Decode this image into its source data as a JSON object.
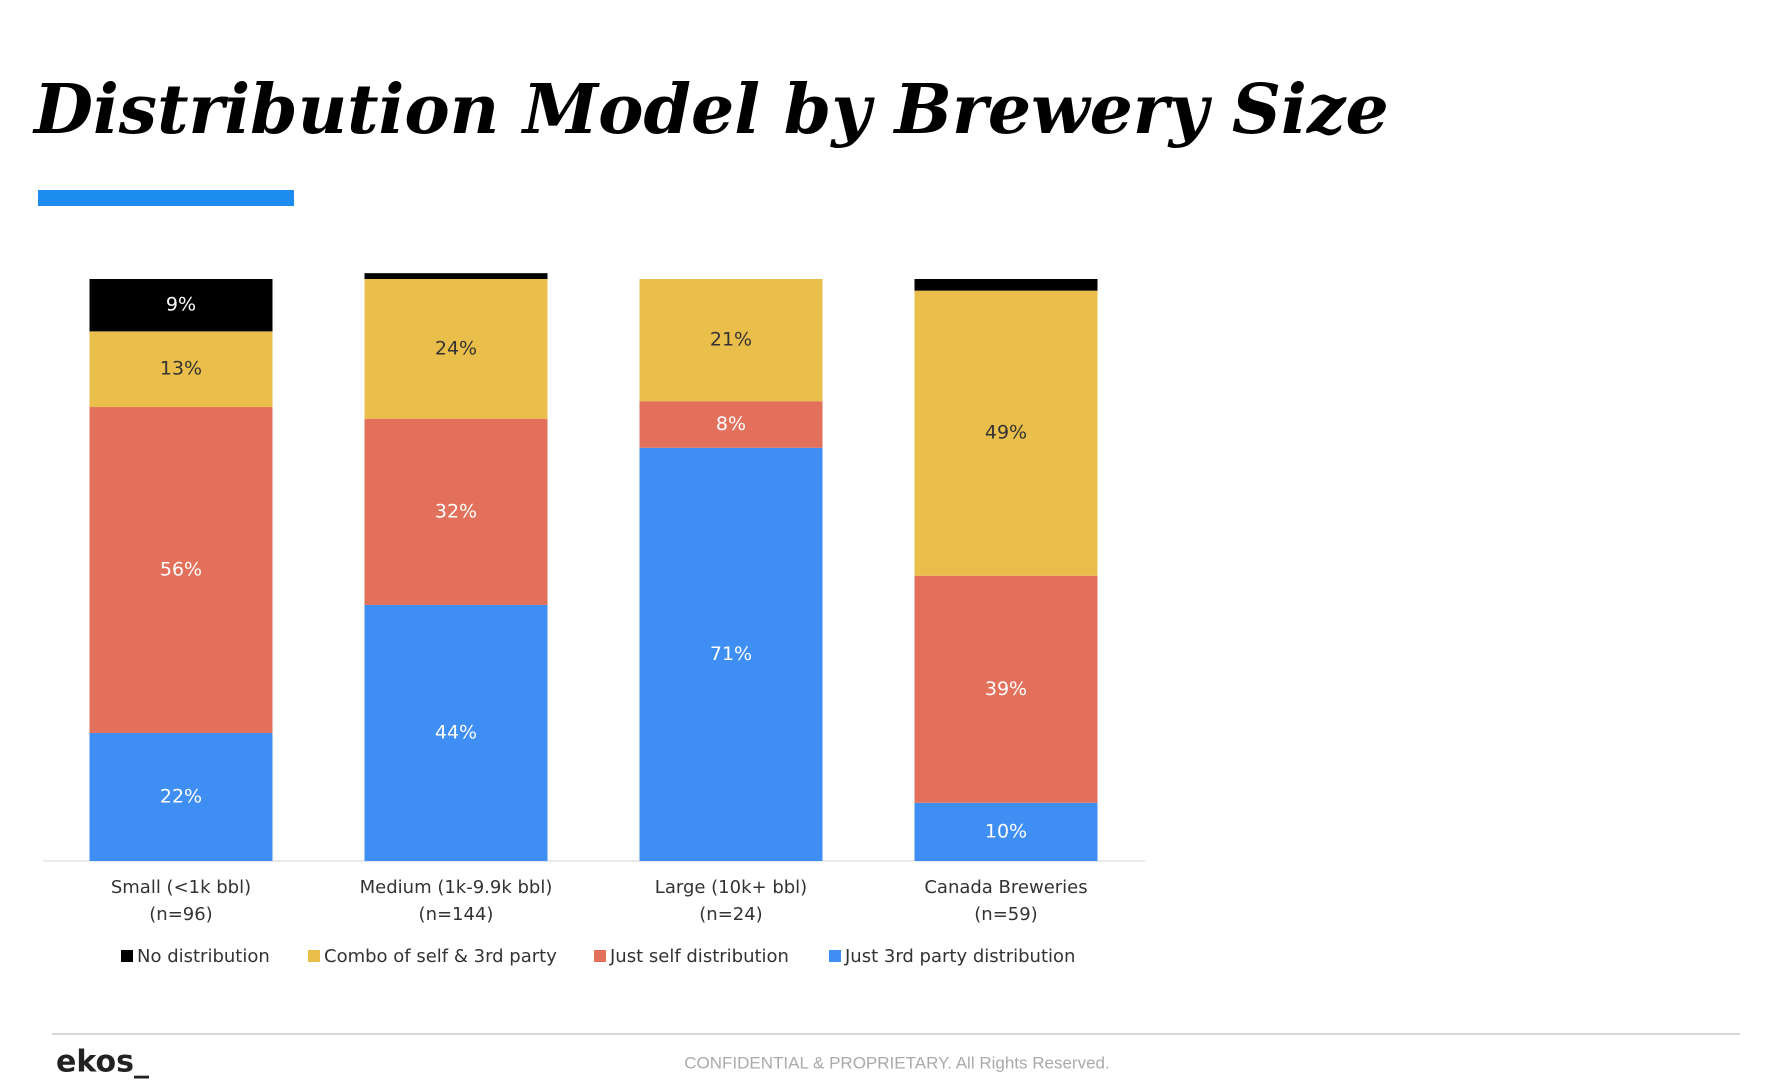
{
  "chart_data": {
    "type": "stacked_bar",
    "title": "Distribution Model by Brewery Size",
    "categories": [
      [
        "Small (<1k bbl)",
        "(n=96)"
      ],
      [
        "Medium (1k-9.9k bbl)",
        "(n=144)"
      ],
      [
        "Large (10k+ bbl)",
        "(n=24)"
      ],
      [
        "Canada Breweries",
        "(n=59)"
      ]
    ],
    "series": [
      {
        "name": "Just 3rd party distribution",
        "color": "#3e8ef4",
        "label_color": "#ffffff",
        "values": [
          22,
          44,
          71,
          10
        ],
        "value_labels": [
          "22%",
          "44%",
          "71%",
          "10%"
        ]
      },
      {
        "name": "Just self distribution",
        "color": "#e3705b",
        "label_color": "#ffffff",
        "values": [
          56,
          32,
          8,
          39
        ],
        "value_labels": [
          "56%",
          "32%",
          "8%",
          "39%"
        ]
      },
      {
        "name": "Combo of self & 3rd party",
        "color": "#eabe4a",
        "label_color": "#333333",
        "values": [
          13,
          24,
          21,
          49
        ],
        "value_labels": [
          "13%",
          "24%",
          "21%",
          "49%"
        ]
      },
      {
        "name": "No distribution",
        "color": "#000000",
        "label_color": "#ffffff",
        "values": [
          9,
          1,
          null,
          2
        ],
        "value_labels": [
          "9%",
          null,
          null,
          null
        ]
      }
    ],
    "ylim": [
      0,
      100
    ],
    "legend": "bottom"
  },
  "footer": {
    "logo": "ekos_",
    "notice": "CONFIDENTIAL & PROPRIETARY. All Rights Reserved."
  }
}
